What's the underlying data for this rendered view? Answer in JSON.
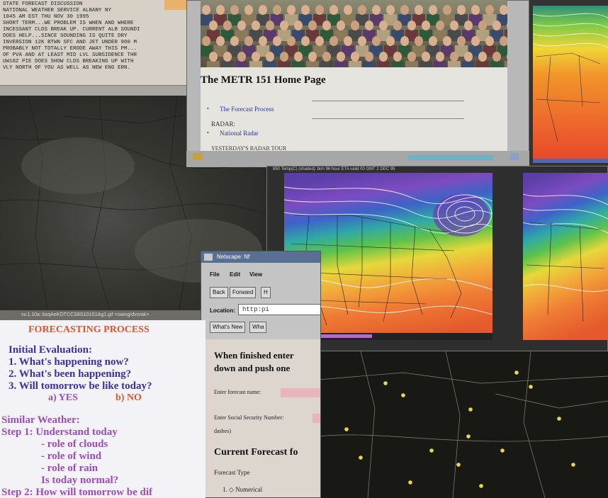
{
  "discussion": {
    "lines": [
      "STATE FORECAST DISCUSSION",
      "NATIONAL WEATHER SERVICE ALBANY NY",
      "1045 AM EST THU NOV 30 1995",
      "",
      "SHORT TERM...WE PROBLEM IS WHEN AND WHERE",
      "INCESSANT CLDS BREAK UP. CURRENT ALB SOUNDI",
      "DOES HELP...SINCE SOUNDING IS QUITE DRY",
      "INVERSION 12K BTWN SFC AND JET UNDER 900 M",
      "PROBABLY NOT TOTALLY ERODE AWAY THIS PM...",
      "OF PVA AND AT LEAST MID LVL SUBSIDENCE THR",
      "UW18Z PIE DOES SHOW CLDS BREAKING UP WITH",
      "VLY NORTH OF YOU AS WELL AS NEW ENG ERN."
    ]
  },
  "satellite": {
    "status": "sv.1.10a: bsqAeKOTCCS8S101S1Ag1.gif <swing/dvorak>"
  },
  "process": {
    "title": "FORECASTING PROCESS",
    "initial_heading": "Initial Evaluation:",
    "q1": "1.  What's happening now?",
    "q2": "2.  What's been happening?",
    "q3": "3.  Will tomorrow be like today?",
    "yes": "a) YES",
    "no": "b) NO",
    "similar_heading": "Similar Weather:",
    "step1": "Step 1: Understand today",
    "role_clouds": "- role of clouds",
    "role_wind": "- role of wind",
    "role_rain": "- role of rain",
    "normal": "Is today normal?",
    "step2": "Step 2: How will tomorrow be dif"
  },
  "home_page": {
    "title": "The METR 151 Home Page",
    "link_forecast": "The Forecast Process",
    "radar_label": "RADAR:",
    "link_national_radar": "National Radar",
    "yesterday": "YESTERDAY'S RADAR TOUR"
  },
  "map_main": {
    "caption": "850 Temp(C) (shaded) 1km      96 hour ETA valid 00 GMT 2 DEC 95"
  },
  "netscape": {
    "title": "Netscape: Nf",
    "menu": [
      "File",
      "Edit",
      "View"
    ],
    "buttons": {
      "back": "Back",
      "forward": "Forward",
      "home": "H"
    },
    "location_label": "Location:",
    "location_value": "http:pi",
    "whats_new": "What's New",
    "whats_cool": "Wha",
    "page": {
      "line1": "When finished enter",
      "line2": "down and push one",
      "forecast_name": "Enter forecast name:",
      "ssn": "Enter Social Security Number:",
      "dashes": "dashes)",
      "current": "Current Forecast fo",
      "forecast_type": "Forecast Type",
      "numerical": "1.  ◇ Numerical"
    }
  },
  "colors": {
    "process_title": "#e2542b",
    "process_blue": "#3a2fa8",
    "process_purple": "#9a4cc0",
    "process_red": "#e2542b",
    "link_blue": "#2a34a8"
  }
}
